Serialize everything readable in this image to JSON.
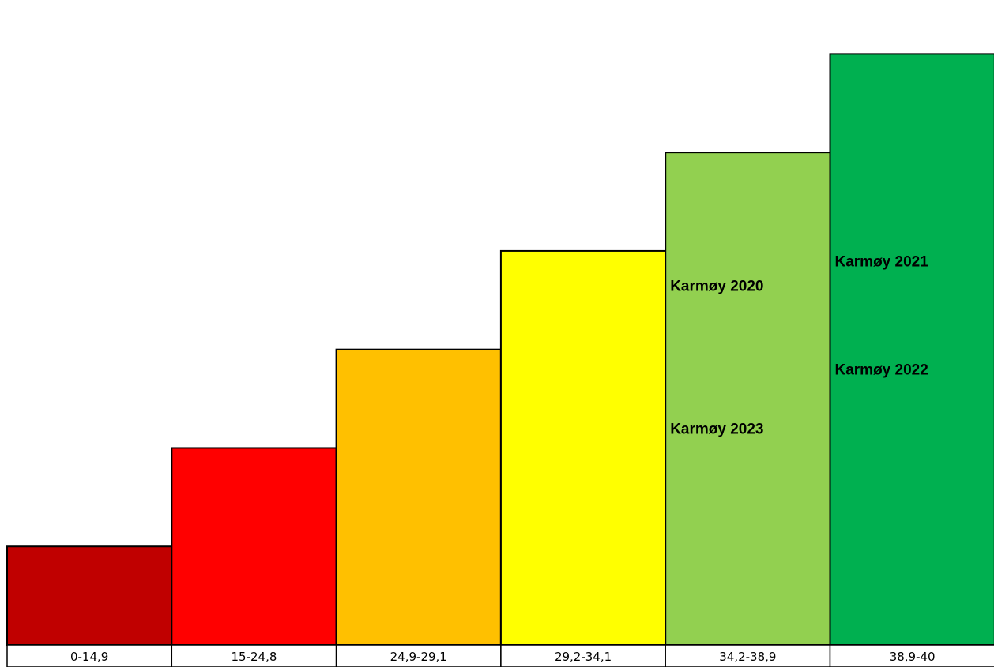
{
  "chart_data": {
    "type": "bar",
    "title": "",
    "xlabel": "",
    "ylabel": "",
    "categories": [
      "0-14,9",
      "15-24,8",
      "24,9-29,1",
      "29,2-34,1",
      "34,2-38,9",
      "38,9-40"
    ],
    "values": [
      1,
      2,
      3,
      4,
      5,
      6
    ],
    "ylim": [
      0,
      6.5
    ],
    "colors": [
      "#C00000",
      "#FF0000",
      "#FFC000",
      "#FFFF00",
      "#92D050",
      "#00B050"
    ],
    "grid": false,
    "legend": "none",
    "annotations": [
      {
        "text": "Karmøy 2020",
        "category_index": 4,
        "y": 3.65
      },
      {
        "text": "Karmøy 2023",
        "category_index": 4,
        "y": 2.2
      },
      {
        "text": "Karmøy 2021",
        "category_index": 5,
        "y": 3.9
      },
      {
        "text": "Karmøy 2022",
        "category_index": 5,
        "y": 2.8
      }
    ]
  }
}
